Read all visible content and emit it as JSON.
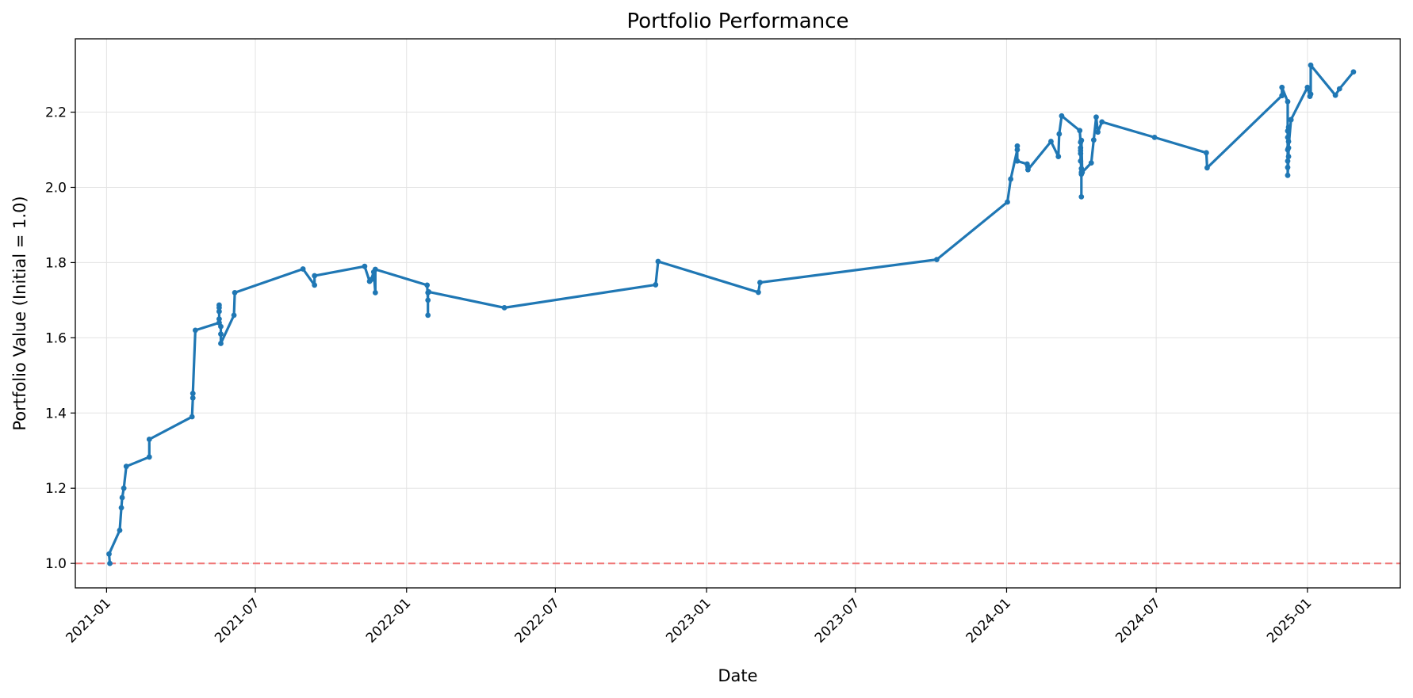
{
  "chart_data": {
    "type": "line",
    "title": "Portfolio Performance",
    "xlabel": "Date",
    "ylabel": "Portfolio Value (Initial = 1.0)",
    "x_type": "date",
    "xlim": [
      "2020-11-24",
      "2025-04-24"
    ],
    "ylim": [
      0.935,
      2.395
    ],
    "xticks": [
      "2021-01",
      "2021-07",
      "2022-01",
      "2022-07",
      "2023-01",
      "2023-07",
      "2024-01",
      "2024-07",
      "2025-01"
    ],
    "yticks": [
      1.0,
      1.2,
      1.4,
      1.6,
      1.8,
      2.0,
      2.2
    ],
    "ytick_labels": [
      "1.0",
      "1.2",
      "1.4",
      "1.6",
      "1.8",
      "2.0",
      "2.2"
    ],
    "grid": true,
    "reference_line": {
      "y": 1.0,
      "color": "#f07a7a",
      "style": "dashed"
    },
    "colors": {
      "series": "#1f77b4"
    },
    "series": [
      {
        "x": [
          "2021-01-05",
          "2021-01-04",
          "2021-01-17",
          "2021-01-19",
          "2021-01-20",
          "2021-01-22",
          "2021-01-25",
          "2021-02-22",
          "2021-02-22",
          "2021-04-15",
          "2021-04-16",
          "2021-04-16",
          "2021-04-19",
          "2021-05-18",
          "2021-05-18",
          "2021-05-18",
          "2021-05-18",
          "2021-05-18",
          "2021-05-18",
          "2021-05-20",
          "2021-05-20",
          "2021-05-20",
          "2021-06-05",
          "2021-06-06",
          "2021-08-28",
          "2021-09-11",
          "2021-09-11",
          "2021-11-11",
          "2021-11-17",
          "2021-11-19",
          "2021-11-22",
          "2021-11-24",
          "2021-11-24",
          "2022-01-26",
          "2022-01-27",
          "2022-01-27",
          "2022-01-27",
          "2022-01-28",
          "2022-04-30",
          "2022-10-31",
          "2022-11-03",
          "2023-03-05",
          "2023-03-07",
          "2023-10-08",
          "2024-01-02",
          "2024-01-06",
          "2024-01-14",
          "2024-01-14",
          "2024-01-14",
          "2024-01-26",
          "2024-01-27",
          "2024-01-27",
          "2024-02-24",
          "2024-03-04",
          "2024-03-05",
          "2024-03-08",
          "2024-03-30",
          "2024-03-31",
          "2024-03-31",
          "2024-03-31",
          "2024-03-31",
          "2024-03-31",
          "2024-04-01",
          "2024-04-01",
          "2024-04-01",
          "2024-04-01",
          "2024-04-01",
          "2024-04-02",
          "2024-04-13",
          "2024-04-16",
          "2024-04-19",
          "2024-04-21",
          "2024-04-26",
          "2024-06-29",
          "2024-08-31",
          "2024-09-01",
          "2024-12-01",
          "2024-12-01",
          "2024-12-08",
          "2024-12-08",
          "2024-12-08",
          "2024-12-08",
          "2024-12-08",
          "2024-12-08",
          "2024-12-08",
          "2024-12-09",
          "2024-12-09",
          "2024-12-09",
          "2024-12-09",
          "2024-12-09",
          "2024-12-12",
          "2024-12-12",
          "2025-01-01",
          "2025-01-04",
          "2025-01-05",
          "2025-01-05",
          "2025-02-04",
          "2025-02-09",
          "2025-02-26"
        ],
        "values": [
          1.0,
          1.025,
          1.088,
          1.148,
          1.175,
          1.2,
          1.258,
          1.283,
          1.33,
          1.39,
          1.44,
          1.452,
          1.62,
          1.64,
          1.65,
          1.67,
          1.68,
          1.687,
          1.64,
          1.63,
          1.61,
          1.585,
          1.66,
          1.72,
          1.783,
          1.74,
          1.765,
          1.79,
          1.75,
          1.755,
          1.775,
          1.72,
          1.782,
          1.74,
          1.7,
          1.66,
          1.72,
          1.722,
          1.68,
          1.741,
          1.803,
          1.721,
          1.747,
          1.808,
          1.961,
          2.022,
          2.1,
          2.11,
          2.07,
          2.062,
          2.055,
          2.047,
          2.122,
          2.082,
          2.142,
          2.19,
          2.151,
          2.12,
          2.105,
          2.098,
          2.09,
          2.07,
          2.05,
          2.035,
          2.04,
          1.975,
          2.125,
          2.04,
          2.065,
          2.126,
          2.187,
          2.147,
          2.174,
          2.133,
          2.092,
          2.052,
          2.244,
          2.266,
          2.228,
          2.15,
          2.133,
          2.1,
          2.07,
          2.053,
          2.032,
          2.082,
          2.122,
          2.15,
          2.16,
          2.105,
          2.18,
          2.18,
          2.266,
          2.242,
          2.248,
          2.325,
          2.245,
          2.262,
          2.307
        ]
      }
    ]
  }
}
